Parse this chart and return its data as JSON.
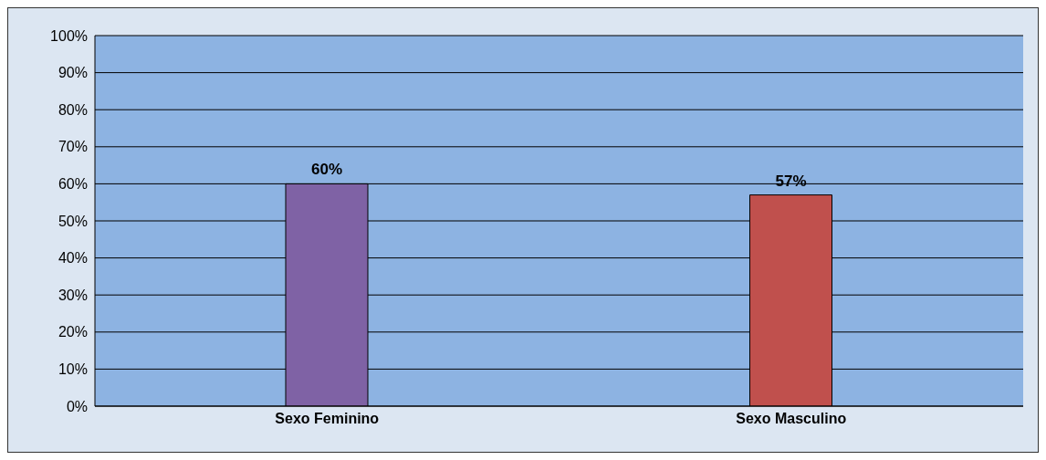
{
  "chart_data": {
    "type": "bar",
    "categories": [
      "Sexo Feminino",
      "Sexo Masculino"
    ],
    "values": [
      60,
      57
    ],
    "colors": [
      "#7f62a5",
      "#c0504d"
    ],
    "value_labels": [
      "60%",
      "57%"
    ],
    "ylim": [
      0,
      100
    ],
    "yticks": [
      {
        "value": 0,
        "label": "0%"
      },
      {
        "value": 10,
        "label": "10%"
      },
      {
        "value": 20,
        "label": "20%"
      },
      {
        "value": 30,
        "label": "30%"
      },
      {
        "value": 40,
        "label": "40%"
      },
      {
        "value": 50,
        "label": "50%"
      },
      {
        "value": 60,
        "label": "60%"
      },
      {
        "value": 70,
        "label": "70%"
      },
      {
        "value": 80,
        "label": "80%"
      },
      {
        "value": 90,
        "label": "90%"
      },
      {
        "value": 100,
        "label": "100%"
      }
    ],
    "grid": "y",
    "legend": false
  }
}
